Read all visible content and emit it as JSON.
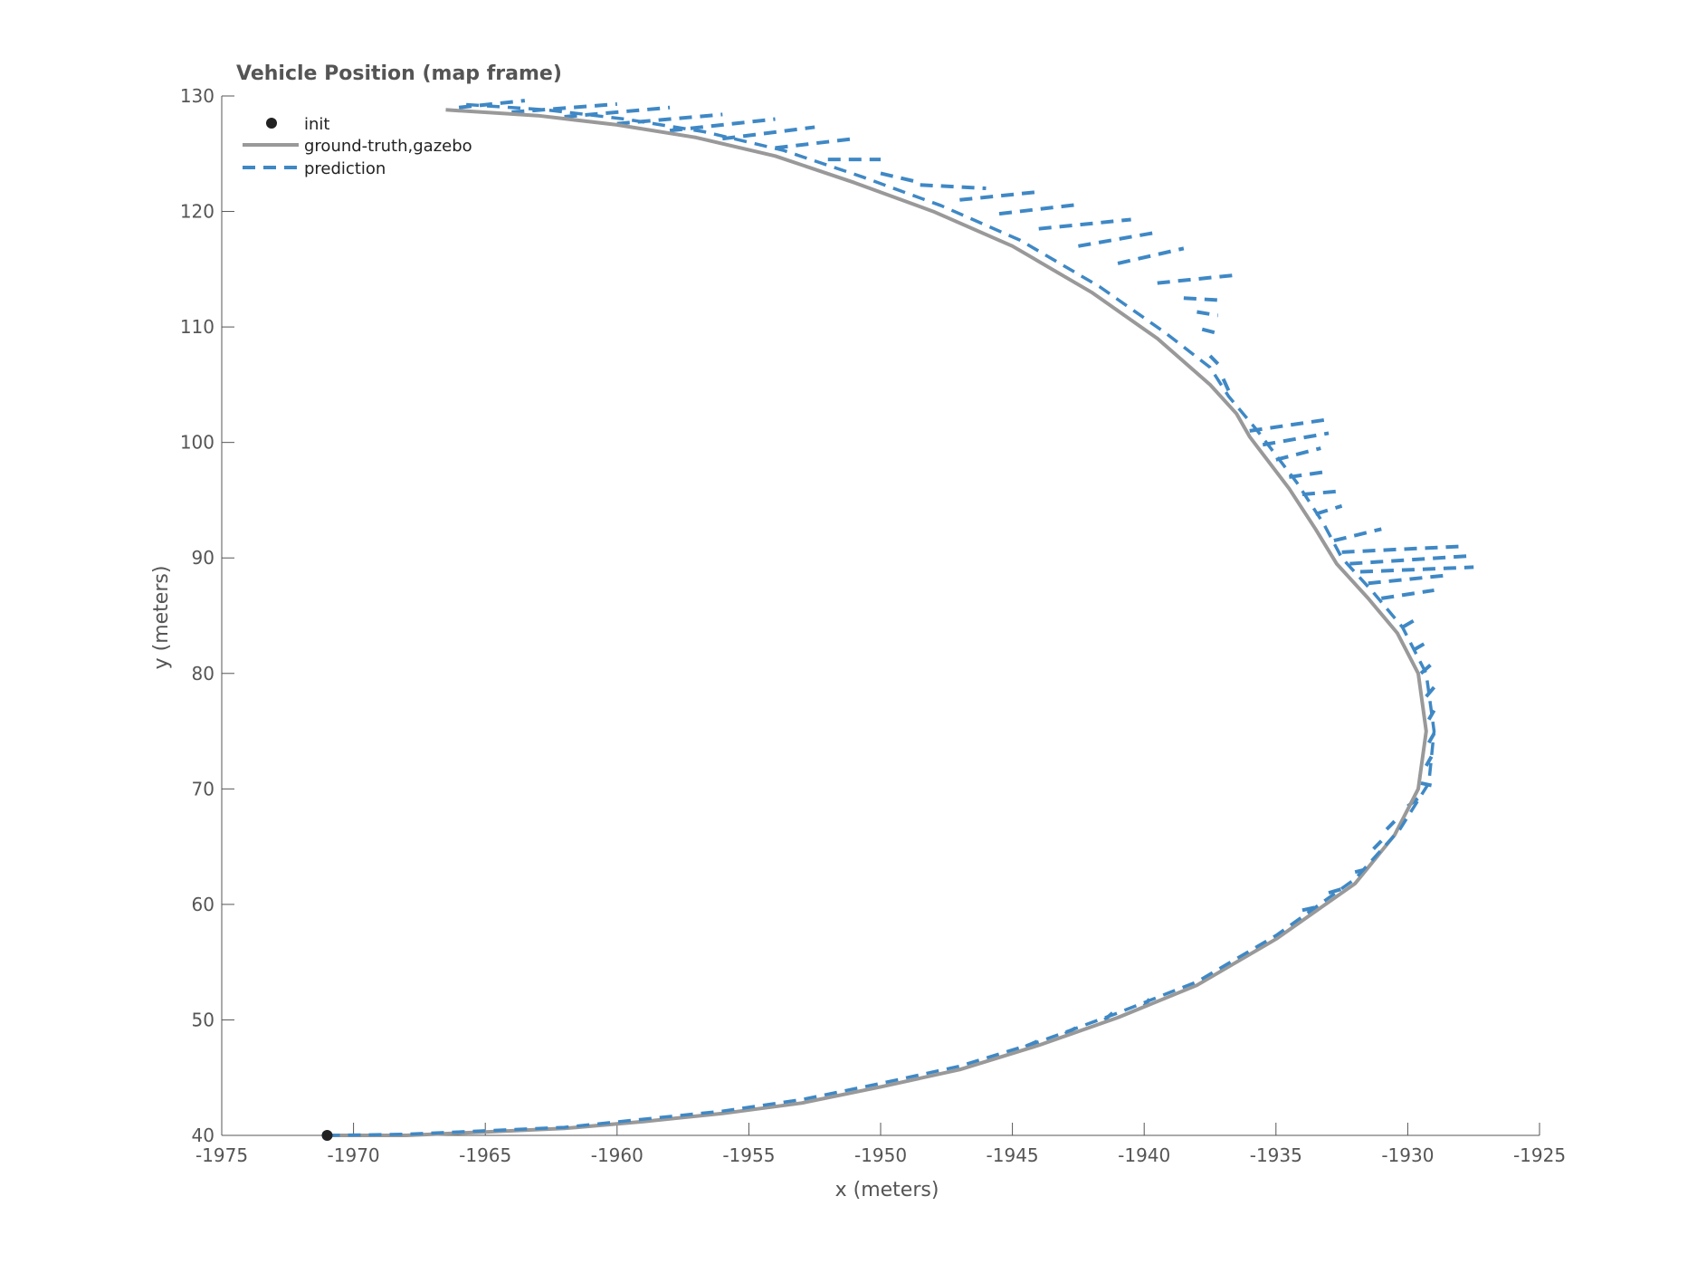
{
  "chart_data": {
    "type": "line",
    "title": "Vehicle Position (map frame)",
    "xlabel": "x (meters)",
    "ylabel": "y (meters)",
    "xlim": [
      -1975,
      -1925
    ],
    "ylim": [
      40,
      130
    ],
    "x_ticks": [
      -1975,
      -1970,
      -1965,
      -1960,
      -1955,
      -1950,
      -1945,
      -1940,
      -1935,
      -1930,
      -1925
    ],
    "y_ticks": [
      40,
      50,
      60,
      70,
      80,
      90,
      100,
      110,
      120,
      130
    ],
    "grid": false,
    "legend_position": "top-left",
    "colors": {
      "init": "#222222",
      "ground_truth": "#999999",
      "prediction": "#3f88c5",
      "axis": "#555555"
    },
    "legend": [
      "init",
      "ground-truth,gazebo",
      "prediction"
    ],
    "init": {
      "name": "init",
      "x": -1971,
      "y": 40
    },
    "series": [
      {
        "name": "ground-truth,gazebo",
        "style": "solid",
        "points": [
          [
            -1971,
            40
          ],
          [
            -1968,
            40
          ],
          [
            -1965,
            40.3
          ],
          [
            -1962,
            40.6
          ],
          [
            -1959,
            41.2
          ],
          [
            -1956,
            41.9
          ],
          [
            -1953,
            42.8
          ],
          [
            -1950,
            44.2
          ],
          [
            -1947,
            45.7
          ],
          [
            -1944,
            47.8
          ],
          [
            -1941,
            50.2
          ],
          [
            -1938,
            53.0
          ],
          [
            -1935,
            57.0
          ],
          [
            -1932,
            61.8
          ],
          [
            -1930.5,
            66.0
          ],
          [
            -1929.6,
            70.0
          ],
          [
            -1929.3,
            75.0
          ],
          [
            -1929.6,
            80.0
          ],
          [
            -1930.4,
            83.5
          ],
          [
            -1931.5,
            86.5
          ],
          [
            -1932.7,
            89.5
          ],
          [
            -1933.5,
            92.5
          ],
          [
            -1934.5,
            96.0
          ],
          [
            -1936.0,
            100.5
          ],
          [
            -1936.5,
            102.5
          ],
          [
            -1937.5,
            105.0
          ],
          [
            -1939.5,
            109.0
          ],
          [
            -1942.0,
            113.0
          ],
          [
            -1945.0,
            117.0
          ],
          [
            -1948.0,
            120.0
          ],
          [
            -1951.0,
            122.5
          ],
          [
            -1954.0,
            124.8
          ],
          [
            -1957.0,
            126.4
          ],
          [
            -1960.0,
            127.5
          ],
          [
            -1963.0,
            128.3
          ],
          [
            -1966.5,
            128.8
          ]
        ]
      },
      {
        "name": "prediction",
        "style": "dashed",
        "points": [
          [
            -1971,
            40
          ],
          [
            -1968,
            40.1
          ],
          [
            -1965,
            40.4
          ],
          [
            -1962,
            40.7
          ],
          [
            -1959,
            41.4
          ],
          [
            -1956,
            42.1
          ],
          [
            -1953,
            43.1
          ],
          [
            -1950,
            44.5
          ],
          [
            -1947,
            46.0
          ],
          [
            -1944,
            48.1
          ],
          [
            -1941,
            50.6
          ],
          [
            -1938,
            53.3
          ],
          [
            -1935,
            57.3
          ],
          [
            -1932,
            62.2
          ],
          [
            -1930.3,
            66.5
          ],
          [
            -1929.2,
            70.5
          ],
          [
            -1929.0,
            75.0
          ],
          [
            -1929.3,
            80.0
          ],
          [
            -1930.2,
            84.0
          ],
          [
            -1931.3,
            87.0
          ],
          [
            -1932.5,
            90.0
          ],
          [
            -1933.2,
            93.0
          ],
          [
            -1934.2,
            96.5
          ],
          [
            -1935.7,
            101.0
          ],
          [
            -1936.8,
            104.0
          ],
          [
            -1937.5,
            106.5
          ],
          [
            -1939.2,
            109.5
          ],
          [
            -1941.7,
            113.5
          ],
          [
            -1944.7,
            117.5
          ],
          [
            -1947.7,
            120.5
          ],
          [
            -1950.7,
            123.0
          ],
          [
            -1953.7,
            125.3
          ],
          [
            -1956.7,
            126.9
          ],
          [
            -1959.7,
            128.0
          ],
          [
            -1962.7,
            128.8
          ],
          [
            -1966.0,
            129.3
          ]
        ]
      }
    ],
    "prediction_rays": [
      [
        -1966.0,
        129.0,
        -1963.5,
        129.6
      ],
      [
        -1964.0,
        128.6,
        -1960.0,
        129.3
      ],
      [
        -1962.0,
        128.2,
        -1958.0,
        129.0
      ],
      [
        -1960.0,
        127.6,
        -1956.0,
        128.4
      ],
      [
        -1958.0,
        127.0,
        -1954.0,
        128.0
      ],
      [
        -1956.0,
        126.3,
        -1952.5,
        127.3
      ],
      [
        -1954.0,
        125.5,
        -1951.0,
        126.3
      ],
      [
        -1952.0,
        124.5,
        -1950.0,
        124.5
      ],
      [
        -1950.0,
        123.3,
        -1948.5,
        122.5
      ],
      [
        -1948.5,
        122.3,
        -1946.0,
        122.0
      ],
      [
        -1947.0,
        121.0,
        -1944.0,
        121.7
      ],
      [
        -1945.5,
        119.8,
        -1942.5,
        120.6
      ],
      [
        -1944.0,
        118.5,
        -1940.5,
        119.3
      ],
      [
        -1942.5,
        117.0,
        -1939.5,
        118.2
      ],
      [
        -1941.0,
        115.5,
        -1938.5,
        116.8
      ],
      [
        -1939.5,
        113.8,
        -1936.5,
        114.5
      ],
      [
        -1938.5,
        112.5,
        -1937.0,
        112.3
      ],
      [
        -1938.0,
        111.3,
        -1937.2,
        111.0
      ],
      [
        -1937.8,
        109.8,
        -1937.3,
        109.5
      ],
      [
        -1937.5,
        107.5,
        -1937.2,
        106.8
      ],
      [
        -1937.0,
        105.5,
        -1936.8,
        104.5
      ],
      [
        -1936.0,
        101.0,
        -1933.0,
        102.0
      ],
      [
        -1935.5,
        99.8,
        -1933.0,
        100.8
      ],
      [
        -1935.0,
        98.5,
        -1933.3,
        99.5
      ],
      [
        -1934.5,
        97.0,
        -1933.0,
        97.5
      ],
      [
        -1934.0,
        95.5,
        -1932.5,
        95.8
      ],
      [
        -1933.5,
        93.8,
        -1932.5,
        94.5
      ],
      [
        -1932.8,
        91.5,
        -1931.0,
        92.5
      ],
      [
        -1932.5,
        90.5,
        -1928.0,
        91.0
      ],
      [
        -1932.2,
        89.5,
        -1927.5,
        90.2
      ],
      [
        -1931.8,
        88.8,
        -1927.5,
        89.2
      ],
      [
        -1931.5,
        87.8,
        -1928.5,
        88.5
      ],
      [
        -1931.0,
        86.5,
        -1929.0,
        87.2
      ],
      [
        -1930.2,
        84.0,
        -1929.6,
        84.8
      ],
      [
        -1929.8,
        82.0,
        -1929.2,
        82.8
      ],
      [
        -1929.5,
        80.0,
        -1929.1,
        80.8
      ],
      [
        -1929.3,
        78.0,
        -1929.0,
        78.8
      ],
      [
        -1929.2,
        76.0,
        -1929.0,
        76.8
      ],
      [
        -1929.2,
        74.0,
        -1929.0,
        74.8
      ],
      [
        -1929.3,
        72.0,
        -1929.1,
        72.8
      ],
      [
        -1929.5,
        70.5,
        -1929.1,
        70.3
      ],
      [
        -1930.0,
        68.5,
        -1929.6,
        69.2
      ],
      [
        -1930.8,
        66.5,
        -1930.5,
        67.2
      ],
      [
        -1931.3,
        64.8,
        -1931.0,
        65.5
      ],
      [
        -1932.0,
        62.8,
        -1931.3,
        63.2
      ],
      [
        -1933.0,
        61.0,
        -1932.4,
        61.4
      ],
      [
        -1934.0,
        59.5,
        -1933.4,
        59.8
      ],
      [
        -1940.0,
        51.2,
        -1939.8,
        51.8
      ],
      [
        -1941.5,
        50.0,
        -1941.2,
        50.6
      ],
      [
        -1943.0,
        48.8,
        -1942.6,
        49.3
      ],
      [
        -1944.5,
        47.7,
        -1944.0,
        48.2
      ]
    ]
  }
}
